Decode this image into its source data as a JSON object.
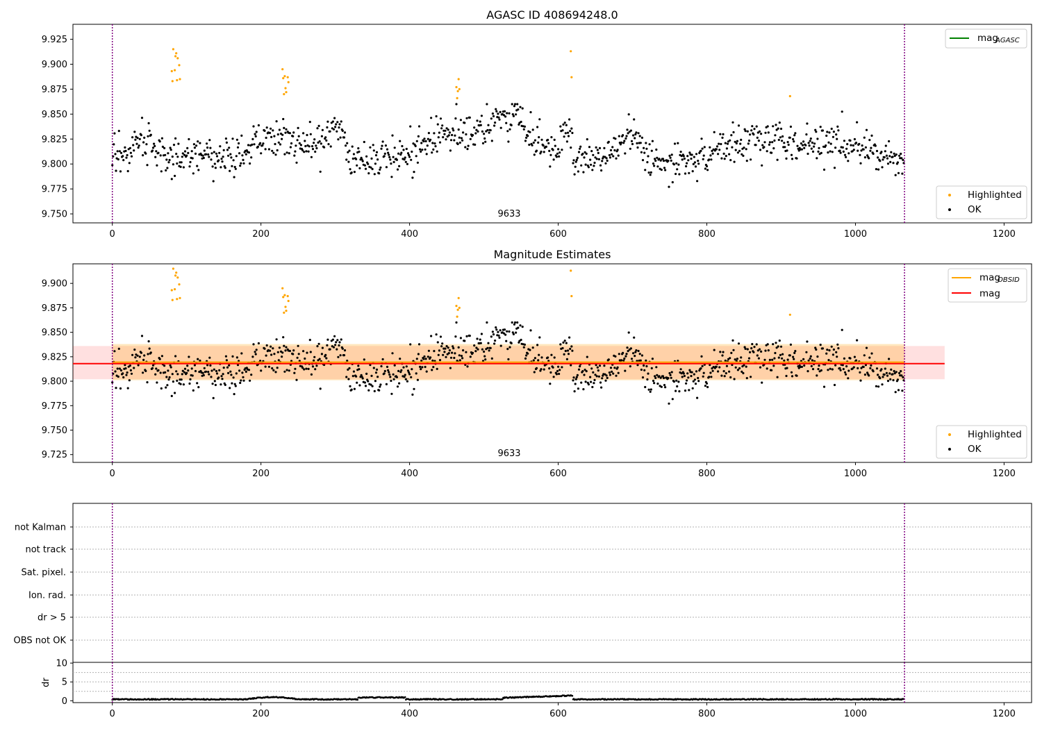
{
  "chart_data": [
    {
      "type": "scatter",
      "title": "AGASC ID 408694248.0",
      "xlim": [
        -53,
        1237
      ],
      "ylim": [
        9.741,
        9.94
      ],
      "xticks": [
        0,
        200,
        400,
        600,
        800,
        1000,
        1200
      ],
      "yticks": [
        9.75,
        9.775,
        9.8,
        9.825,
        9.85,
        9.875,
        9.9,
        9.925
      ],
      "ytick_labels": [
        "9.750",
        "9.775",
        "9.800",
        "9.825",
        "9.850",
        "9.875",
        "9.900",
        "9.925"
      ],
      "obsid_label": "9633",
      "obs_bounds": [
        0,
        1066
      ],
      "legends": [
        {
          "placement": "top-right",
          "entries": [
            {
              "label_main": "mag",
              "label_sub": "AGASC",
              "marker": "line",
              "color": "#008000"
            }
          ]
        },
        {
          "placement": "bottom-right",
          "entries": [
            {
              "label": "Highlighted",
              "marker": "dot",
              "color": "#ffa500"
            },
            {
              "label": "OK",
              "marker": "dot",
              "color": "#000000"
            }
          ]
        }
      ],
      "series": [
        {
          "name": "Highlighted",
          "color": "#ffa500",
          "x": [
            80,
            81,
            82,
            84,
            85,
            86,
            87,
            88,
            90,
            91,
            229,
            230,
            231,
            232,
            233,
            234,
            236,
            237,
            463,
            464,
            465,
            466,
            467,
            617,
            618,
            912
          ],
          "y": [
            9.893,
            9.883,
            9.915,
            9.894,
            9.908,
            9.911,
            9.884,
            9.906,
            9.899,
            9.885,
            9.895,
            9.886,
            9.87,
            9.888,
            9.876,
            9.872,
            9.887,
            9.882,
            9.877,
            9.866,
            9.873,
            9.885,
            9.875,
            9.913,
            9.887,
            9.868
          ]
        },
        {
          "name": "OK",
          "color": "#000000",
          "n_points": 1066,
          "seed": 408694248
        }
      ]
    },
    {
      "type": "scatter",
      "title": "Magnitude Estimates",
      "xlim": [
        -53,
        1237
      ],
      "ylim": [
        9.717,
        9.92
      ],
      "xticks": [
        0,
        200,
        400,
        600,
        800,
        1000,
        1200
      ],
      "yticks": [
        9.725,
        9.75,
        9.775,
        9.8,
        9.825,
        9.85,
        9.875,
        9.9
      ],
      "ytick_labels": [
        "9.725",
        "9.750",
        "9.775",
        "9.800",
        "9.825",
        "9.850",
        "9.875",
        "9.900"
      ],
      "obsid_label": "9633",
      "obs_bounds": [
        0,
        1066
      ],
      "mag": 9.818,
      "mag_band": [
        9.802,
        9.836
      ],
      "mag_obsid": 9.8195,
      "mag_obsid_band": [
        9.801,
        9.838
      ],
      "legends": [
        {
          "placement": "top-right",
          "entries": [
            {
              "label_main": "mag",
              "label_sub": "OBSID",
              "marker": "line",
              "color": "#ffa500"
            },
            {
              "label": "mag",
              "marker": "line",
              "color": "#ff0000"
            }
          ]
        },
        {
          "placement": "bottom-right",
          "entries": [
            {
              "label": "Highlighted",
              "marker": "dot",
              "color": "#ffa500"
            },
            {
              "label": "OK",
              "marker": "dot",
              "color": "#000000"
            }
          ]
        }
      ]
    },
    {
      "type": "scatter",
      "title": "",
      "xlim": [
        -53,
        1237
      ],
      "flag_rows": [
        "not Kalman",
        "not track",
        "Sat. pixel.",
        "Ion. rad.",
        "dr > 5",
        "OBS not OK"
      ],
      "dr_ylabel": "dr",
      "dr_ylim": [
        -0.5,
        10.2
      ],
      "dr_yticks": [
        0,
        5,
        10
      ],
      "dr_ytick_labels": [
        "0",
        "5",
        "10"
      ],
      "xticks": [
        0,
        200,
        400,
        600,
        800,
        1000,
        1200
      ],
      "obs_bounds": [
        0,
        1066
      ]
    }
  ],
  "tick_labels_x": [
    "0",
    "200",
    "400",
    "600",
    "800",
    "1000",
    "1200"
  ]
}
